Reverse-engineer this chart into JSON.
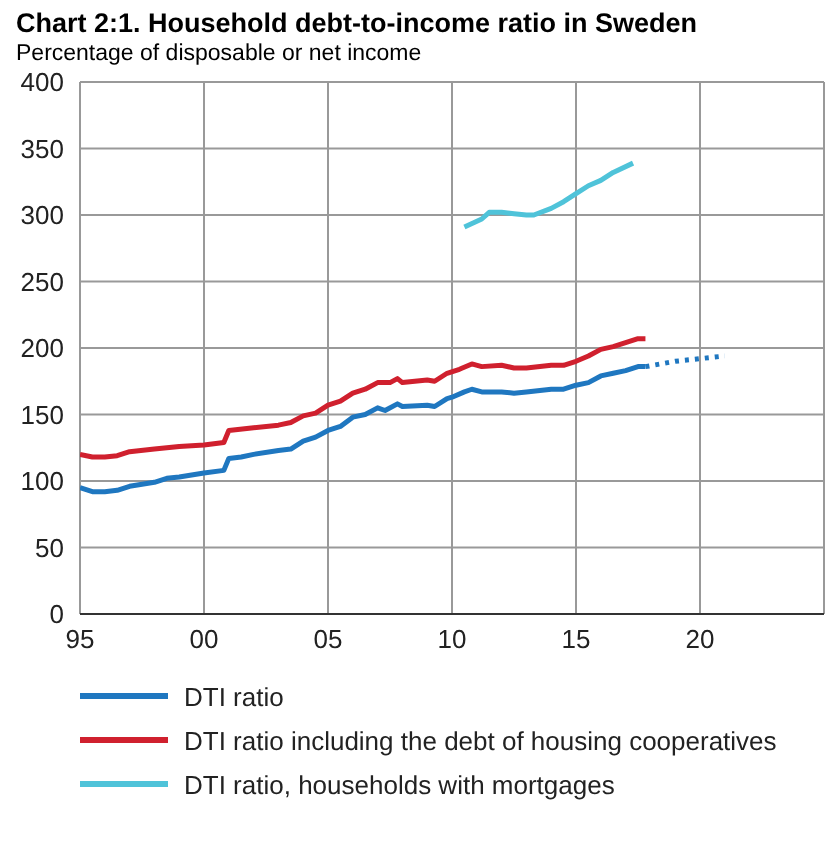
{
  "chart_data": {
    "type": "line",
    "title": "Chart 2:1. Household debt-to-income ratio in Sweden",
    "subtitle": "Percentage of disposable or net income",
    "xlim": [
      1995,
      2025
    ],
    "xticks": [
      {
        "value": 1995,
        "label": "95"
      },
      {
        "value": 2000,
        "label": "00"
      },
      {
        "value": 2005,
        "label": "05"
      },
      {
        "value": 2010,
        "label": "10"
      },
      {
        "value": 2015,
        "label": "15"
      },
      {
        "value": 2020,
        "label": "20"
      }
    ],
    "ylim": [
      0,
      400
    ],
    "yticks": [
      0,
      50,
      100,
      150,
      200,
      250,
      300,
      350,
      400
    ],
    "grid": true,
    "legend": "bottom",
    "marker": "none",
    "series": [
      {
        "name": "DTI ratio",
        "color": "#1f77c0",
        "line_style": "solid",
        "x": [
          1995,
          1995.5,
          1996,
          1996.5,
          1997,
          1998,
          1998.5,
          1999,
          2000,
          2000.8,
          2001,
          2001.5,
          2002,
          2003,
          2003.5,
          2004,
          2004.5,
          2005,
          2005.5,
          2006,
          2006.5,
          2007,
          2007.3,
          2007.8,
          2008,
          2009,
          2009.3,
          2009.8,
          2010,
          2010.5,
          2010.8,
          2011.2,
          2012,
          2012.5,
          2013,
          2014,
          2014.5,
          2015,
          2015.5,
          2016,
          2016.5,
          2017,
          2017.5,
          2017.8
        ],
        "values": [
          95,
          92,
          92,
          93,
          96,
          99,
          102,
          103,
          106,
          108,
          117,
          118,
          120,
          123,
          124,
          130,
          133,
          138,
          141,
          148,
          150,
          155,
          153,
          158,
          156,
          157,
          156,
          162,
          163,
          167,
          169,
          167,
          167,
          166,
          167,
          169,
          169,
          172,
          174,
          179,
          181,
          183,
          186,
          186
        ]
      },
      {
        "name": "DTI ratio including the debt of housing cooperatives",
        "color": "#d0202e",
        "line_style": "solid",
        "x": [
          1995,
          1995.5,
          1996,
          1996.5,
          1997,
          1998,
          1999,
          2000,
          2000.8,
          2001,
          2002,
          2003,
          2003.5,
          2004,
          2004.5,
          2005,
          2005.5,
          2006,
          2006.5,
          2007,
          2007.5,
          2007.8,
          2008,
          2009,
          2009.3,
          2009.8,
          2010.3,
          2010.8,
          2011.2,
          2012,
          2012.5,
          2013,
          2014,
          2014.5,
          2015,
          2015.5,
          2016,
          2016.5,
          2017,
          2017.5,
          2017.8
        ],
        "values": [
          120,
          118,
          118,
          119,
          122,
          124,
          126,
          127,
          129,
          138,
          140,
          142,
          144,
          149,
          151,
          157,
          160,
          166,
          169,
          174,
          174,
          177,
          174,
          176,
          175,
          181,
          184,
          188,
          186,
          187,
          185,
          185,
          187,
          187,
          190,
          194,
          199,
          201,
          204,
          207,
          207
        ]
      },
      {
        "name": "DTI ratio, households with mortgages",
        "color": "#4fc3d9",
        "line_style": "solid",
        "x": [
          2010.5,
          2011.2,
          2011.5,
          2012,
          2012.5,
          2013,
          2013.3,
          2014,
          2014.5,
          2015,
          2015.5,
          2016,
          2016.5,
          2017.3
        ],
        "values": [
          291,
          297,
          302,
          302,
          301,
          300,
          300,
          305,
          310,
          316,
          322,
          326,
          332,
          339
        ]
      },
      {
        "color": "#1f77c0",
        "line_style": "dotted",
        "x": [
          2017.8,
          2019,
          2020,
          2021
        ],
        "values": [
          186,
          190,
          192,
          194
        ]
      }
    ]
  }
}
